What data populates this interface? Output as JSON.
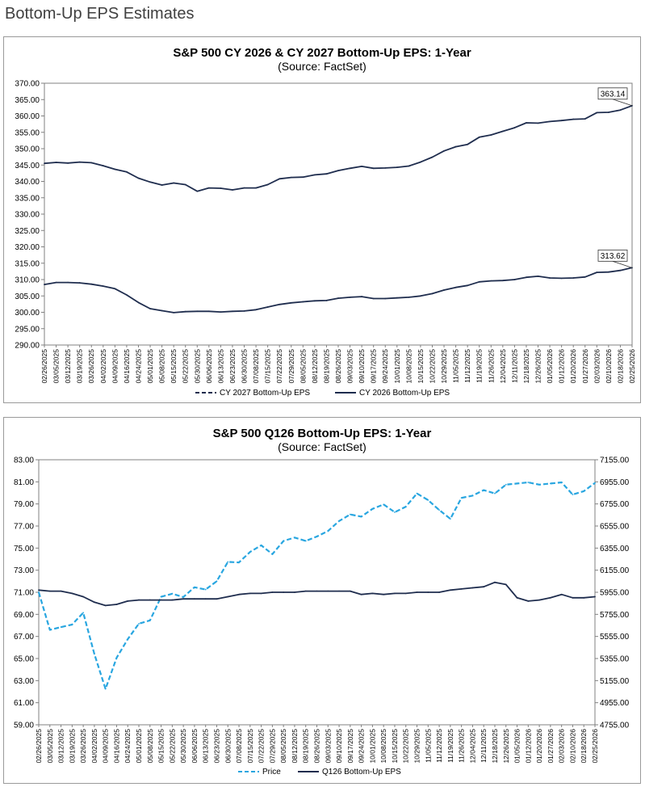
{
  "page": {
    "title": "Bottom-Up EPS Estimates"
  },
  "chart_data": [
    {
      "type": "line",
      "title": "S&P 500 CY 2026 & CY 2027 Bottom-Up  EPS: 1-Year",
      "subtitle": "(Source: FactSet)",
      "ylim": [
        290,
        370
      ],
      "yticks": [
        "370.00",
        "365.00",
        "360.00",
        "355.00",
        "350.00",
        "345.00",
        "340.00",
        "335.00",
        "330.00",
        "325.00",
        "320.00",
        "315.00",
        "310.00",
        "305.00",
        "300.00",
        "295.00",
        "290.00"
      ],
      "xticks": [
        "02/26/2025",
        "03/05/2025",
        "03/12/2025",
        "03/19/2025",
        "03/26/2025",
        "04/02/2025",
        "04/09/2025",
        "04/16/2025",
        "04/24/2025",
        "05/01/2025",
        "05/08/2025",
        "05/15/2025",
        "05/22/2025",
        "05/30/2025",
        "06/06/2025",
        "06/13/2025",
        "06/23/2025",
        "06/30/2025",
        "07/08/2025",
        "07/15/2025",
        "07/22/2025",
        "07/29/2025",
        "08/05/2025",
        "08/12/2025",
        "08/19/2025",
        "08/26/2025",
        "09/03/2025",
        "09/10/2025",
        "09/17/2025",
        "09/24/2025",
        "10/01/2025",
        "10/08/2025",
        "10/15/2025",
        "10/22/2025",
        "10/29/2025",
        "11/05/2025",
        "11/12/2025",
        "11/19/2025",
        "11/26/2025",
        "12/04/2025",
        "12/11/2025",
        "12/18/2025",
        "12/26/2025",
        "01/05/2026",
        "01/12/2026",
        "01/20/2026",
        "01/27/2026",
        "02/03/2026",
        "02/10/2026",
        "02/18/2026",
        "02/25/2026"
      ],
      "series": [
        {
          "name": "CY 2027 Bottom-Up EPS",
          "style": "dashed",
          "color": "#1f2d4e",
          "values": [
            345.5,
            345.8,
            345.6,
            345.9,
            345.7,
            344.8,
            343.7,
            342.9,
            341.0,
            339.8,
            338.9,
            339.5,
            339.0,
            337.0,
            338.0,
            337.9,
            337.4,
            338.0,
            338.0,
            339.0,
            340.8,
            341.2,
            341.3,
            342.0,
            342.3,
            343.3,
            344.0,
            344.6,
            344.0,
            344.1,
            344.3,
            344.7,
            345.9,
            347.4,
            349.3,
            350.6,
            351.3,
            353.5,
            354.2,
            355.3,
            356.4,
            357.9,
            357.8,
            358.3,
            358.6,
            359.0,
            359.1,
            361.0,
            361.1,
            361.8,
            363.14
          ]
        },
        {
          "name": "CY 2026 Bottom-Up EPS",
          "style": "solid",
          "color": "#1f2d4e",
          "values": [
            308.5,
            309.1,
            309.1,
            309.0,
            308.6,
            308.0,
            307.2,
            305.3,
            303.0,
            301.1,
            300.5,
            299.9,
            300.2,
            300.3,
            300.3,
            300.1,
            300.3,
            300.4,
            300.8,
            301.6,
            302.4,
            302.9,
            303.2,
            303.5,
            303.6,
            304.3,
            304.6,
            304.8,
            304.2,
            304.2,
            304.4,
            304.6,
            305.0,
            305.7,
            306.8,
            307.6,
            308.2,
            309.3,
            309.6,
            309.7,
            310.0,
            310.7,
            311.0,
            310.5,
            310.4,
            310.5,
            310.8,
            312.2,
            312.3,
            312.8,
            313.62
          ]
        }
      ],
      "callouts": [
        "363.14",
        "313.62"
      ],
      "legend": "bottom"
    },
    {
      "type": "line",
      "title": "S&P 500 Q126 Bottom-Up  EPS: 1-Year",
      "subtitle": "(Source: FactSet)",
      "ylim": [
        59,
        83
      ],
      "y2lim": [
        4755,
        7155
      ],
      "yticks": [
        "83.00",
        "81.00",
        "79.00",
        "77.00",
        "75.00",
        "73.00",
        "71.00",
        "69.00",
        "67.00",
        "65.00",
        "63.00",
        "61.00",
        "59.00"
      ],
      "y2ticks": [
        "7155.00",
        "6955.00",
        "6755.00",
        "6555.00",
        "6355.00",
        "6155.00",
        "5955.00",
        "5755.00",
        "5555.00",
        "5355.00",
        "5155.00",
        "4955.00",
        "4755.00"
      ],
      "xticks": [
        "02/26/2025",
        "03/05/2025",
        "03/12/2025",
        "03/19/2025",
        "03/26/2025",
        "04/02/2025",
        "04/09/2025",
        "04/16/2025",
        "04/24/2025",
        "05/01/2025",
        "05/08/2025",
        "05/15/2025",
        "05/22/2025",
        "05/30/2025",
        "06/06/2025",
        "06/13/2025",
        "06/23/2025",
        "06/30/2025",
        "07/08/2025",
        "07/15/2025",
        "07/22/2025",
        "07/29/2025",
        "08/05/2025",
        "08/12/2025",
        "08/19/2025",
        "08/26/2025",
        "09/03/2025",
        "09/10/2025",
        "09/17/2025",
        "09/24/2025",
        "10/01/2025",
        "10/08/2025",
        "10/15/2025",
        "10/22/2025",
        "10/29/2025",
        "11/05/2025",
        "11/12/2025",
        "11/19/2025",
        "11/26/2025",
        "12/04/2025",
        "12/11/2025",
        "12/18/2025",
        "12/26/2025",
        "01/05/2026",
        "01/12/2026",
        "01/20/2026",
        "01/27/2026",
        "02/03/2026",
        "02/10/2026",
        "02/18/2026",
        "02/25/2026"
      ],
      "series": [
        {
          "name": "Price",
          "style": "dashed",
          "color": "#29a6e0",
          "axis": "right",
          "values": [
            5955,
            5615,
            5640,
            5662,
            5770,
            5396,
            5080,
            5362,
            5530,
            5670,
            5700,
            5914,
            5942,
            5912,
            6000,
            5980,
            6055,
            6230,
            6225,
            6320,
            6380,
            6300,
            6420,
            6450,
            6420,
            6460,
            6510,
            6600,
            6660,
            6640,
            6710,
            6750,
            6680,
            6730,
            6850,
            6790,
            6700,
            6620,
            6810,
            6830,
            6880,
            6850,
            6930,
            6940,
            6950,
            6930,
            6940,
            6950,
            6840,
            6870,
            6945
          ]
        },
        {
          "name": "Q126 Bottom-Up EPS",
          "style": "solid",
          "color": "#1f2d4e",
          "axis": "left",
          "values": [
            71.2,
            71.1,
            71.1,
            70.9,
            70.6,
            70.1,
            69.8,
            69.9,
            70.2,
            70.3,
            70.3,
            70.3,
            70.3,
            70.4,
            70.4,
            70.4,
            70.4,
            70.6,
            70.8,
            70.9,
            70.9,
            71.0,
            71.0,
            71.0,
            71.1,
            71.1,
            71.1,
            71.1,
            71.1,
            70.8,
            70.9,
            70.8,
            70.9,
            70.9,
            71.0,
            71.0,
            71.0,
            71.2,
            71.3,
            71.4,
            71.5,
            71.9,
            71.7,
            70.5,
            70.2,
            70.3,
            70.5,
            70.8,
            70.5,
            70.5,
            70.6
          ]
        }
      ],
      "legend": "bottom"
    }
  ]
}
